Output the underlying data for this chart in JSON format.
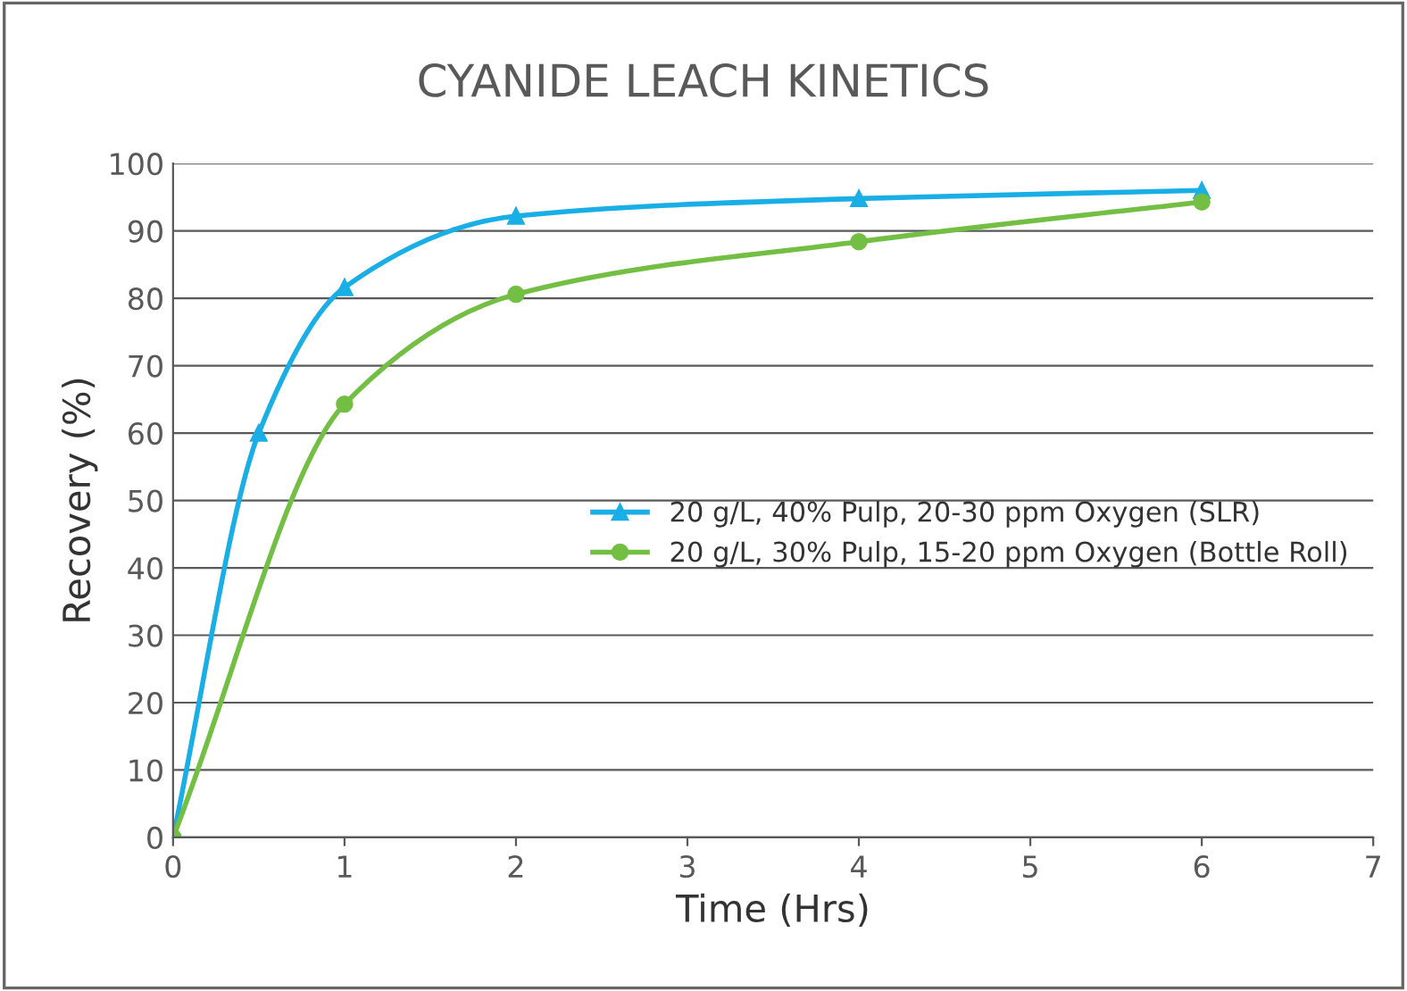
{
  "chart_data": {
    "type": "line",
    "title": "CYANIDE LEACH KINETICS",
    "xlabel": "Time (Hrs)",
    "ylabel": "Recovery (%)",
    "xlim": [
      0,
      7
    ],
    "xticks": [
      0,
      1,
      2,
      3,
      4,
      5,
      6,
      7
    ],
    "ylim": [
      0,
      100
    ],
    "yticks": [
      0,
      10,
      20,
      30,
      40,
      50,
      60,
      70,
      80,
      90,
      100
    ],
    "grid": "y",
    "legend": "center right",
    "series": [
      {
        "name": "20 g/L, 40% Pulp, 20-30 ppm Oxygen (SLR)",
        "color": "#1aaee6",
        "marker": "triangle",
        "x": [
          0,
          0.5,
          1,
          2,
          4,
          6
        ],
        "values": [
          0,
          60,
          81.6,
          92.2,
          94.8,
          96
        ]
      },
      {
        "name": "20 g/L, 30% Pulp, 15-20 ppm Oxygen (Bottle Roll)",
        "color": "#72bf44",
        "marker": "circle",
        "x": [
          0,
          1,
          2,
          4,
          6
        ],
        "values": [
          0,
          64.3,
          80.6,
          88.4,
          94.3
        ]
      }
    ]
  }
}
